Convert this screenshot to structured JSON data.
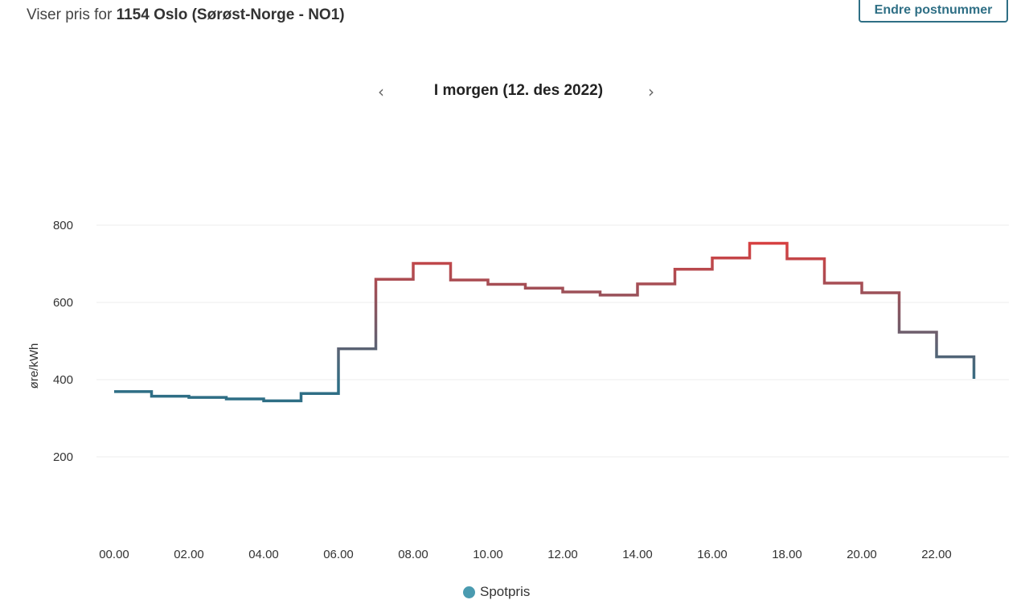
{
  "header": {
    "prefix": "Viser pris for",
    "location": "1154 Oslo (Sørøst-Norge - NO1)",
    "change_button": "Endre postnummer"
  },
  "day_nav": {
    "prev_arrow": "‹",
    "next_arrow": "›",
    "date_label": "I morgen (12. des 2022)"
  },
  "colors": {
    "low": "#2e6e85",
    "high": "#d94040",
    "grid": "#eeeeee",
    "legend_dot": "#4a9bb0"
  },
  "chart_data": {
    "type": "line",
    "step": true,
    "ylabel": "øre/kWh",
    "xlabel": "",
    "ylim": [
      40,
      840
    ],
    "yticks": [
      200,
      400,
      600,
      800
    ],
    "xticks": [
      "00.00",
      "02.00",
      "04.00",
      "06.00",
      "08.00",
      "10.00",
      "12.00",
      "14.00",
      "16.00",
      "18.00",
      "20.00",
      "22.00"
    ],
    "x": [
      "00.00",
      "01.00",
      "02.00",
      "03.00",
      "04.00",
      "05.00",
      "06.00",
      "07.00",
      "08.00",
      "09.00",
      "10.00",
      "11.00",
      "12.00",
      "13.00",
      "14.00",
      "15.00",
      "16.00",
      "17.00",
      "18.00",
      "19.00",
      "20.00",
      "21.00",
      "22.00",
      "23.00"
    ],
    "series": [
      {
        "name": "Spotpris",
        "values": [
          369,
          357,
          354,
          350,
          345,
          364,
          480,
          660,
          701,
          658,
          647,
          637,
          627,
          619,
          648,
          686,
          715,
          753,
          713,
          650,
          625,
          523,
          459,
          402
        ]
      }
    ],
    "grid": true,
    "legend": "bottom-center"
  }
}
